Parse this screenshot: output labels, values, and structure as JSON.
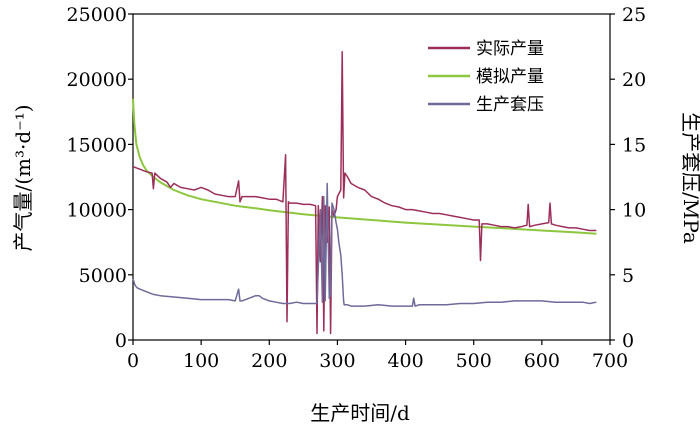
{
  "chart_data": {
    "type": "line",
    "xlabel": "生产时间/d",
    "ylabel_left": "产气量/(m³·d⁻¹)",
    "ylabel_right": "生产套压/MPa",
    "xlim": [
      0,
      700
    ],
    "ylim_left": [
      0,
      25000
    ],
    "ylim_right": [
      0,
      25
    ],
    "x_ticks": [
      0,
      100,
      200,
      300,
      400,
      500,
      600,
      700
    ],
    "y_left_ticks": [
      0,
      5000,
      10000,
      15000,
      20000,
      25000
    ],
    "y_right_ticks": [
      0,
      5,
      10,
      15,
      20,
      25
    ],
    "grid": false,
    "legend_position": "top-right",
    "series": [
      {
        "name": "实际产量",
        "axis": "left",
        "color": "#9c2f5a",
        "x": [
          0,
          5,
          10,
          20,
          28,
          30,
          32,
          40,
          50,
          55,
          60,
          70,
          80,
          90,
          100,
          110,
          120,
          130,
          140,
          150,
          155,
          157,
          160,
          170,
          180,
          190,
          200,
          210,
          220,
          224,
          226,
          228,
          230,
          240,
          250,
          260,
          268,
          270,
          272,
          275,
          278,
          280,
          282,
          285,
          288,
          290,
          292,
          295,
          298,
          300,
          305,
          307,
          309,
          311,
          315,
          320,
          330,
          340,
          350,
          360,
          370,
          380,
          390,
          400,
          410,
          420,
          430,
          440,
          450,
          460,
          470,
          480,
          490,
          500,
          508,
          510,
          512,
          520,
          530,
          540,
          550,
          560,
          570,
          578,
          580,
          582,
          590,
          600,
          610,
          612,
          614,
          620,
          630,
          640,
          650,
          660,
          670,
          680
        ],
        "values": [
          13300,
          13200,
          13100,
          12900,
          12800,
          11600,
          12800,
          12400,
          12100,
          11700,
          12000,
          11700,
          11600,
          11500,
          11700,
          11500,
          11200,
          11100,
          11000,
          11000,
          12200,
          10600,
          11000,
          11000,
          11000,
          10900,
          10800,
          10800,
          10600,
          14200,
          1400,
          10600,
          10500,
          10500,
          10400,
          10400,
          10300,
          500,
          10300,
          6000,
          11000,
          700,
          10300,
          7500,
          10200,
          500,
          10000,
          9500,
          10000,
          11000,
          11500,
          22100,
          10900,
          12800,
          12500,
          12000,
          11700,
          11500,
          11000,
          10800,
          10500,
          10300,
          10200,
          10000,
          10000,
          9900,
          9800,
          9700,
          9700,
          9600,
          9500,
          9400,
          9300,
          9200,
          9200,
          6100,
          8900,
          8900,
          8800,
          8700,
          8700,
          8600,
          8700,
          8800,
          10400,
          8700,
          8800,
          8900,
          9000,
          10500,
          8900,
          8800,
          8700,
          8600,
          8600,
          8500,
          8400,
          8400
        ]
      },
      {
        "name": "模拟产量",
        "axis": "left",
        "color": "#8dc63f",
        "x": [
          0,
          2,
          5,
          10,
          15,
          20,
          30,
          40,
          50,
          60,
          80,
          100,
          120,
          150,
          180,
          200,
          250,
          300,
          350,
          400,
          450,
          500,
          550,
          600,
          650,
          680
        ],
        "values": [
          18500,
          16500,
          15000,
          14000,
          13400,
          13000,
          12500,
          12100,
          11800,
          11500,
          11100,
          10800,
          10600,
          10300,
          10100,
          9950,
          9650,
          9400,
          9200,
          9000,
          8850,
          8700,
          8550,
          8400,
          8250,
          8150
        ]
      },
      {
        "name": "生产套压",
        "axis": "right",
        "color": "#6e6a9a",
        "x": [
          0,
          3,
          6,
          10,
          20,
          30,
          40,
          60,
          80,
          100,
          120,
          140,
          150,
          155,
          157,
          160,
          170,
          180,
          185,
          190,
          200,
          210,
          220,
          230,
          240,
          250,
          260,
          270,
          275,
          278,
          280,
          282,
          285,
          288,
          290,
          292,
          295,
          298,
          300,
          302,
          305,
          307,
          309,
          310,
          315,
          320,
          340,
          360,
          380,
          400,
          410,
          412,
          414,
          420,
          440,
          460,
          480,
          500,
          520,
          540,
          560,
          580,
          600,
          620,
          640,
          660,
          670,
          680
        ],
        "values": [
          4.7,
          4.2,
          4.0,
          3.9,
          3.7,
          3.5,
          3.4,
          3.3,
          3.2,
          3.1,
          3.1,
          3.1,
          3.0,
          3.9,
          3.0,
          3.0,
          3.2,
          3.4,
          3.4,
          3.2,
          3.0,
          2.9,
          2.8,
          2.8,
          2.9,
          2.8,
          2.8,
          2.8,
          10.0,
          2.9,
          11.0,
          3.0,
          12.0,
          3.2,
          3.5,
          10.5,
          10.0,
          9.0,
          8.5,
          7.5,
          6.5,
          5.0,
          3.0,
          2.7,
          2.7,
          2.6,
          2.6,
          2.7,
          2.6,
          2.6,
          2.6,
          3.2,
          2.6,
          2.7,
          2.7,
          2.7,
          2.8,
          2.8,
          2.9,
          2.9,
          3.0,
          3.0,
          3.0,
          2.9,
          2.9,
          2.9,
          2.8,
          2.9
        ]
      }
    ]
  }
}
